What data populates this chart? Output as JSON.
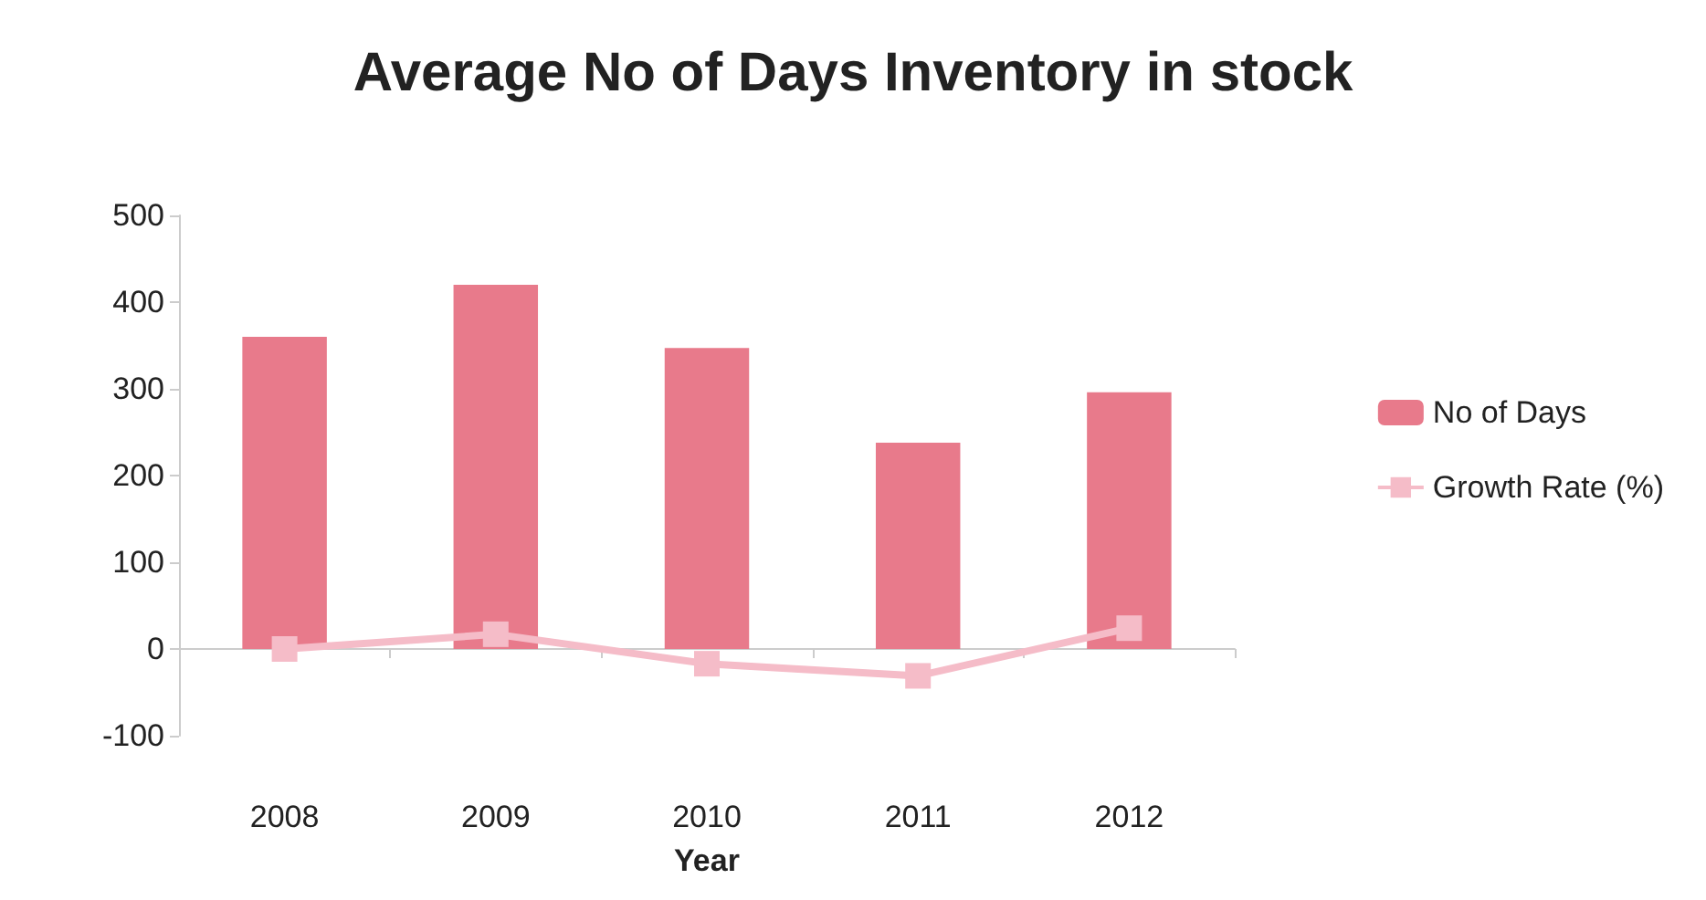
{
  "chart_data": {
    "type": "bar",
    "title": "Average No of Days Inventory in stock",
    "xlabel": "Year",
    "categories": [
      "2008",
      "2009",
      "2010",
      "2011",
      "2012"
    ],
    "series": [
      {
        "name": "No of Days",
        "color": "#e87a8b",
        "values": [
          360,
          420,
          347,
          238,
          296
        ]
      },
      {
        "name": "Growth Rate (%)",
        "type": "line",
        "color": "#f5bcc8",
        "marker": "square",
        "values": [
          0,
          17,
          -17,
          -31,
          24
        ]
      }
    ],
    "ylim": [
      -100,
      500
    ],
    "yticks": [
      -100,
      0,
      100,
      200,
      300,
      400,
      500
    ],
    "legend": "right"
  }
}
